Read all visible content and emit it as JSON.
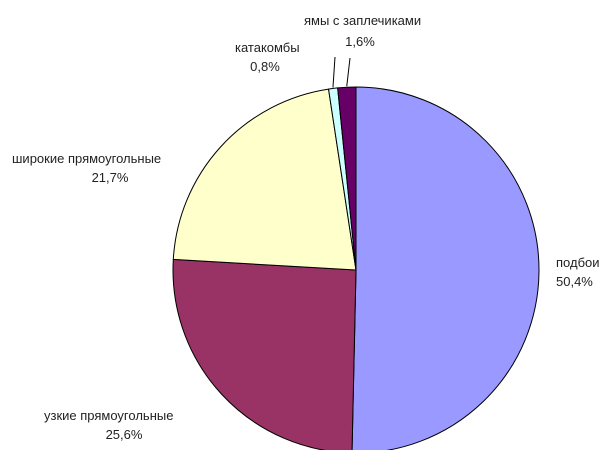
{
  "chart_data": {
    "type": "pie",
    "title": "",
    "slices": [
      {
        "label": "подбои",
        "value": 50.4,
        "value_label": "50,4%",
        "color": "#9999ff"
      },
      {
        "label": "узкие прямоугольные",
        "value": 25.6,
        "value_label": "25,6%",
        "color": "#993366"
      },
      {
        "label": "широкие прямоугольные",
        "value": 21.7,
        "value_label": "21,7%",
        "color": "#ffffcc"
      },
      {
        "label": "катакомбы",
        "value": 0.8,
        "value_label": "0,8%",
        "color": "#ccffff"
      },
      {
        "label": "ямы с заплечиками",
        "value": 1.6,
        "value_label": "1,6%",
        "color": "#660066"
      }
    ]
  }
}
